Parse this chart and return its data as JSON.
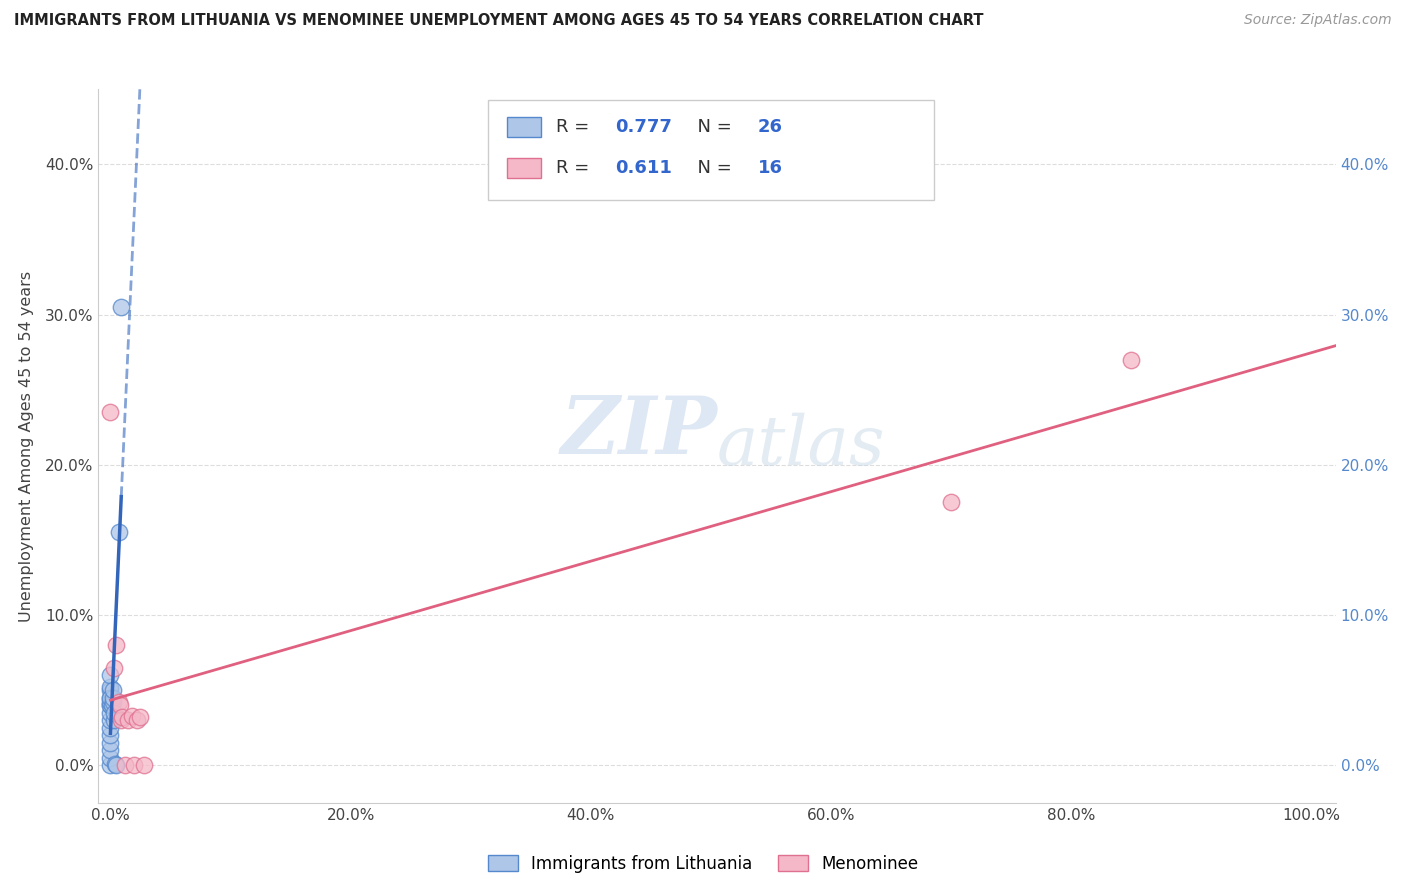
{
  "title": "IMMIGRANTS FROM LITHUANIA VS MENOMINEE UNEMPLOYMENT AMONG AGES 45 TO 54 YEARS CORRELATION CHART",
  "source": "Source: ZipAtlas.com",
  "ylabel": "Unemployment Among Ages 45 to 54 years",
  "watermark_zip": "ZIP",
  "watermark_atlas": "atlas",
  "legend_label1": "Immigrants from Lithuania",
  "legend_label2": "Menominee",
  "r1": "0.777",
  "n1": "26",
  "r2": "0.611",
  "n2": "16",
  "blue_fill": "#aec6e8",
  "blue_edge": "#5588cc",
  "pink_fill": "#f4b8c8",
  "pink_edge": "#e07090",
  "blue_line": "#3366bb",
  "pink_line": "#e06080",
  "blue_scatter_x": [
    0.0,
    0.0,
    0.0,
    0.0,
    0.0,
    0.0,
    0.0,
    0.0,
    0.0,
    0.0,
    0.0,
    0.0,
    0.0,
    0.0,
    0.0,
    0.0,
    0.001,
    0.002,
    0.002,
    0.002,
    0.003,
    0.003,
    0.004,
    0.005,
    0.007,
    0.009
  ],
  "blue_scatter_y": [
    0.0,
    0.005,
    0.01,
    0.015,
    0.02,
    0.025,
    0.03,
    0.035,
    0.04,
    0.045,
    0.05,
    0.052,
    0.04,
    0.042,
    0.045,
    0.06,
    0.04,
    0.042,
    0.045,
    0.05,
    0.03,
    0.035,
    0.001,
    0.0,
    0.155,
    0.305
  ],
  "pink_scatter_x": [
    0.0,
    0.003,
    0.005,
    0.007,
    0.008,
    0.009,
    0.01,
    0.012,
    0.015,
    0.018,
    0.02,
    0.022,
    0.025,
    0.028,
    0.7,
    0.85
  ],
  "pink_scatter_y": [
    0.235,
    0.065,
    0.08,
    0.042,
    0.04,
    0.03,
    0.032,
    0.0,
    0.03,
    0.033,
    0.0,
    0.03,
    0.032,
    0.0,
    0.175,
    0.27
  ],
  "xlim": [
    -0.01,
    1.02
  ],
  "ylim": [
    -0.025,
    0.45
  ],
  "xticks": [
    0.0,
    0.2,
    0.4,
    0.6,
    0.8,
    1.0
  ],
  "yticks": [
    0.0,
    0.1,
    0.2,
    0.3,
    0.4
  ],
  "grid_color": "#dddddd",
  "right_tick_color": "#5588cc",
  "left_tick_color": "#444444",
  "bottom_tick_color": "#444444"
}
